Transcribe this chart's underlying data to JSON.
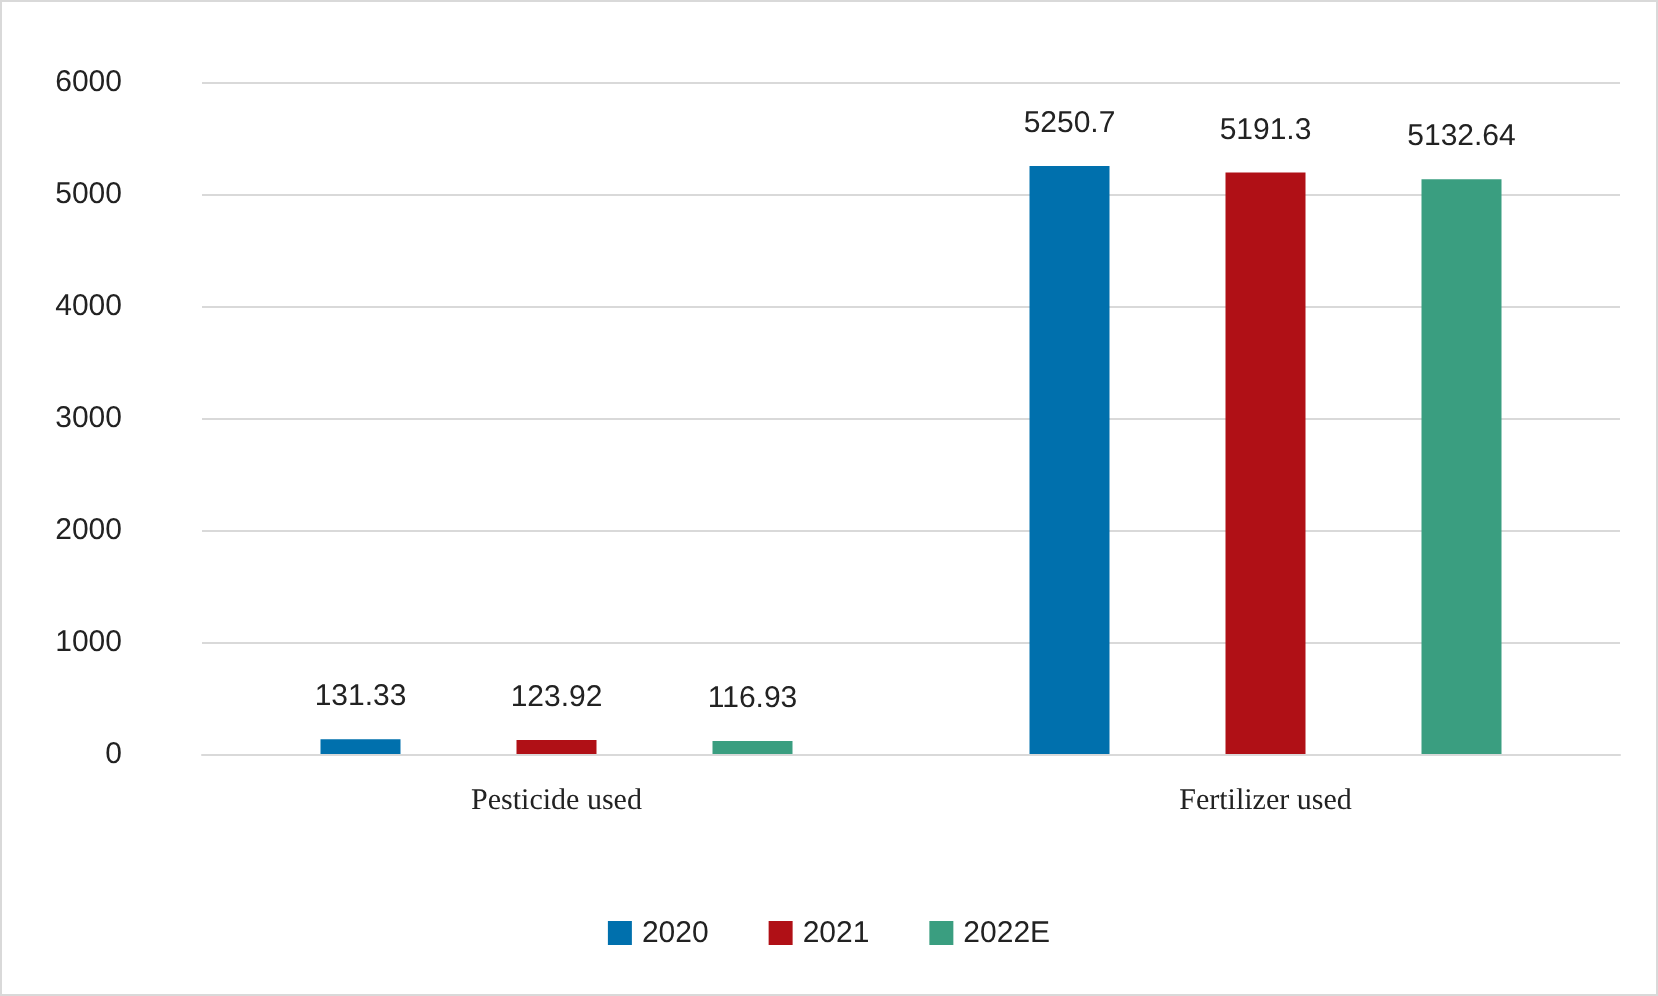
{
  "chart_data": {
    "type": "bar",
    "categories": [
      "Pesticide used",
      "Fertilizer used"
    ],
    "series": [
      {
        "name": "2020",
        "color": "#0070ad",
        "values": [
          131.33,
          5250.7
        ]
      },
      {
        "name": "2021",
        "color": "#b01016",
        "values": [
          123.92,
          5191.3
        ]
      },
      {
        "name": "2022E",
        "color": "#3a9e80",
        "values": [
          116.93,
          5132.64
        ]
      }
    ],
    "ylim": [
      0,
      6000
    ],
    "yticks": [
      0,
      1000,
      2000,
      3000,
      4000,
      5000,
      6000
    ],
    "grid": "y",
    "legend": "bottom",
    "data_labels": true
  }
}
